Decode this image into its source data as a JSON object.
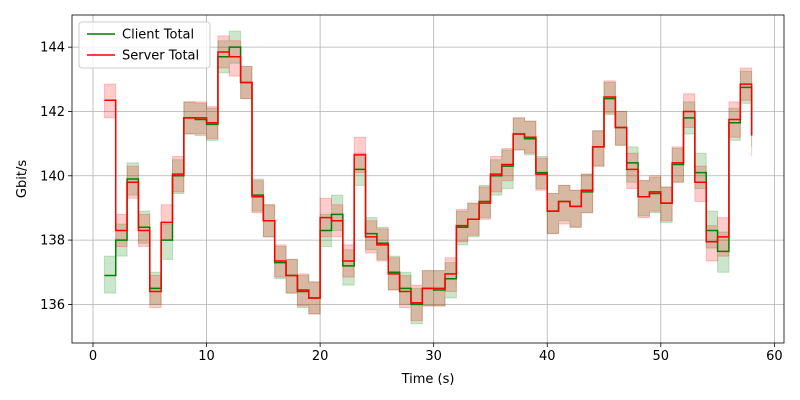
{
  "chart_data": {
    "type": "line",
    "step": "post",
    "xlabel": "Time (s)",
    "ylabel": "Gbit/s",
    "xlim": [
      -1.85,
      60.85
    ],
    "ylim": [
      134.8,
      145.0
    ],
    "xticks": [
      0,
      10,
      20,
      30,
      40,
      50,
      60
    ],
    "yticks": [
      136,
      138,
      140,
      142,
      144
    ],
    "grid": true,
    "legend_position": "top-left",
    "x": [
      1,
      2,
      3,
      4,
      5,
      6,
      7,
      8,
      9,
      10,
      11,
      12,
      13,
      14,
      15,
      16,
      17,
      18,
      19,
      20,
      21,
      22,
      23,
      24,
      25,
      26,
      27,
      28,
      29,
      30,
      31,
      32,
      33,
      34,
      35,
      36,
      37,
      38,
      39,
      40,
      41,
      42,
      43,
      44,
      45,
      46,
      47,
      48,
      49,
      50,
      51,
      52,
      53,
      54,
      55,
      56,
      57,
      58
    ],
    "series": [
      {
        "name": "Client Total",
        "color": "#008000",
        "fill": "rgba(0,128,0,0.2)",
        "values": [
          136.9,
          138.0,
          139.9,
          138.4,
          136.5,
          138.0,
          140.0,
          141.8,
          141.75,
          141.6,
          143.7,
          144.0,
          142.9,
          139.4,
          138.6,
          137.3,
          136.9,
          136.4,
          136.2,
          138.3,
          138.8,
          137.2,
          140.2,
          138.2,
          137.9,
          137.0,
          136.5,
          136.0,
          136.5,
          136.45,
          136.8,
          138.4,
          138.65,
          139.2,
          140.0,
          140.3,
          141.3,
          141.15,
          140.1,
          138.9,
          139.2,
          139.05,
          139.5,
          140.9,
          142.4,
          141.5,
          140.4,
          139.35,
          139.45,
          139.15,
          140.35,
          141.8,
          140.1,
          138.3,
          137.65,
          141.65,
          142.75,
          141.3
        ],
        "band_upper": [
          137.5,
          138.5,
          140.4,
          138.9,
          137.0,
          138.5,
          140.5,
          142.3,
          142.25,
          142.1,
          144.2,
          144.5,
          143.4,
          139.9,
          139.1,
          137.8,
          137.4,
          136.9,
          136.7,
          138.8,
          139.4,
          137.7,
          140.7,
          138.7,
          138.4,
          137.5,
          137.0,
          136.5,
          137.05,
          137.05,
          137.3,
          138.9,
          139.15,
          139.7,
          140.5,
          140.8,
          141.8,
          141.7,
          140.6,
          139.45,
          139.7,
          139.55,
          140.05,
          141.4,
          142.9,
          142.0,
          140.9,
          139.85,
          139.95,
          139.65,
          140.85,
          142.3,
          140.7,
          138.9,
          138.25,
          142.1,
          143.25,
          141.5
        ],
        "band_lower": [
          136.35,
          137.5,
          139.4,
          137.9,
          136.0,
          137.4,
          139.45,
          141.3,
          141.25,
          141.1,
          143.2,
          143.5,
          142.4,
          138.9,
          138.1,
          136.8,
          136.35,
          135.9,
          135.7,
          137.8,
          138.3,
          136.6,
          139.7,
          137.7,
          137.4,
          136.45,
          136.0,
          135.4,
          135.95,
          135.95,
          136.2,
          137.85,
          138.1,
          138.7,
          139.4,
          139.6,
          140.8,
          140.65,
          139.6,
          138.2,
          138.6,
          138.4,
          138.85,
          140.3,
          141.9,
          140.95,
          139.8,
          138.75,
          138.85,
          138.55,
          139.8,
          141.3,
          139.6,
          137.75,
          137.0,
          141.1,
          142.25,
          140.9
        ]
      },
      {
        "name": "Server Total",
        "color": "#ff0000",
        "fill": "rgba(255,0,0,0.2)",
        "values": [
          142.35,
          138.3,
          139.8,
          138.3,
          136.4,
          138.55,
          140.05,
          141.8,
          141.8,
          141.65,
          143.85,
          143.7,
          142.9,
          139.35,
          138.6,
          137.35,
          136.9,
          136.45,
          136.2,
          138.7,
          138.6,
          137.35,
          140.65,
          138.1,
          137.85,
          136.95,
          136.4,
          136.05,
          136.5,
          136.5,
          136.95,
          138.45,
          138.65,
          139.15,
          140.05,
          140.35,
          141.3,
          141.2,
          140.05,
          138.9,
          139.2,
          139.05,
          139.55,
          140.9,
          142.45,
          141.5,
          140.2,
          139.35,
          139.5,
          139.15,
          140.4,
          142.0,
          139.8,
          137.95,
          138.1,
          141.75,
          142.85,
          141.25
        ],
        "band_upper": [
          142.85,
          138.8,
          140.3,
          138.8,
          136.9,
          139.1,
          140.6,
          142.3,
          142.3,
          142.15,
          144.35,
          144.2,
          143.4,
          139.85,
          139.1,
          137.85,
          137.4,
          136.95,
          136.7,
          139.3,
          139.1,
          137.85,
          141.2,
          138.6,
          138.35,
          137.45,
          136.9,
          136.6,
          137.05,
          137.05,
          137.45,
          138.95,
          139.15,
          139.65,
          140.6,
          140.85,
          141.8,
          141.7,
          140.55,
          139.45,
          139.7,
          139.55,
          140.05,
          141.4,
          142.95,
          142.0,
          140.7,
          139.85,
          140.0,
          139.65,
          140.9,
          142.55,
          140.3,
          138.45,
          138.7,
          142.3,
          143.35,
          140.9
        ],
        "band_lower": [
          141.8,
          137.8,
          139.3,
          137.8,
          135.9,
          138.0,
          139.5,
          141.3,
          141.3,
          141.15,
          143.35,
          143.1,
          142.4,
          138.85,
          138.1,
          136.85,
          136.35,
          135.95,
          135.7,
          138.1,
          138.1,
          136.85,
          140.1,
          137.6,
          137.35,
          136.45,
          135.9,
          135.5,
          135.95,
          135.95,
          136.4,
          137.95,
          138.15,
          138.65,
          139.5,
          139.85,
          140.8,
          140.7,
          139.55,
          138.2,
          138.5,
          138.4,
          138.85,
          140.3,
          141.95,
          140.95,
          139.6,
          138.7,
          138.9,
          138.6,
          139.8,
          141.5,
          139.2,
          137.35,
          137.5,
          141.2,
          142.35,
          140.6
        ]
      }
    ]
  }
}
